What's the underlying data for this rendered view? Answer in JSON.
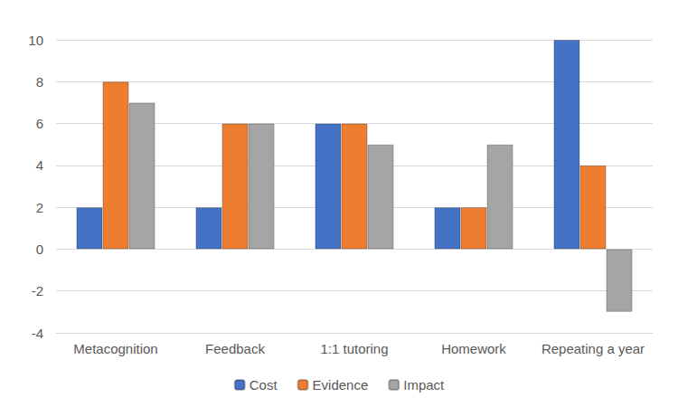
{
  "chart_data": {
    "type": "bar",
    "categories": [
      "Metacognition",
      "Feedback",
      "1:1 tutoring",
      "Homework",
      "Repeating a year"
    ],
    "series": [
      {
        "name": "Cost",
        "color": "#4472c4",
        "values": [
          2,
          2,
          6,
          2,
          10
        ]
      },
      {
        "name": "Evidence",
        "color": "#ed7d31",
        "values": [
          8,
          6,
          6,
          2,
          4
        ]
      },
      {
        "name": "Impact",
        "color": "#a5a5a5",
        "values": [
          7,
          6,
          5,
          5,
          -3
        ]
      }
    ],
    "ylim": [
      -4,
      10
    ],
    "yticks": [
      -4,
      -2,
      0,
      2,
      4,
      6,
      8,
      10
    ],
    "grid": true,
    "legend": "bottom"
  }
}
